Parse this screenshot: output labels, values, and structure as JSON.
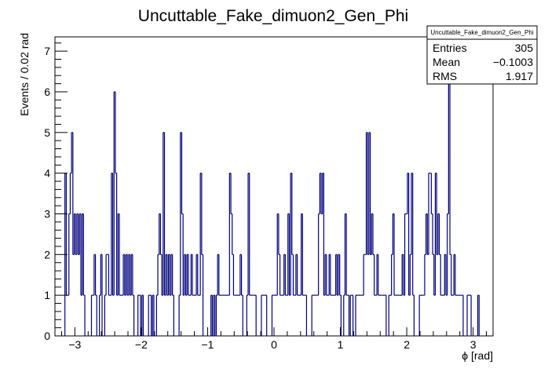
{
  "chart_data": {
    "type": "bar",
    "title": "Uncuttable_Fake_dimuon2_Gen_Phi",
    "xlabel": "ϕ [rad]",
    "ylabel": "Events / 0.02 rad",
    "xlim": [
      -3.3,
      3.3
    ],
    "ylim": [
      0,
      7.35
    ],
    "bin_width": 0.02,
    "x_ticks": [
      -3,
      -2,
      -1,
      0,
      1,
      2,
      3
    ],
    "x_tick_labels": [
      "−3",
      "−2",
      "−1",
      "0",
      "1",
      "2",
      "3"
    ],
    "y_ticks": [
      0,
      1,
      2,
      3,
      4,
      5,
      6,
      7
    ],
    "y_tick_labels": [
      "0",
      "1",
      "2",
      "3",
      "4",
      "5",
      "6",
      "7"
    ],
    "line_color": "#00007f",
    "grid": false,
    "legend_position": "top-right",
    "stats": {
      "header": "Uncuttable_Fake_dimuon2_Gen_Phi",
      "rows": [
        {
          "label": "Entries",
          "value": "305"
        },
        {
          "label": "Mean",
          "value": "−0.1003"
        },
        {
          "label": "RMS",
          "value": "1.917"
        }
      ]
    },
    "bins": [
      {
        "x": -3.14,
        "y": 4
      },
      {
        "x": -3.12,
        "y": 1
      },
      {
        "x": -3.1,
        "y": 1
      },
      {
        "x": -3.08,
        "y": 3
      },
      {
        "x": -3.06,
        "y": 4
      },
      {
        "x": -3.04,
        "y": 5
      },
      {
        "x": -3.02,
        "y": 2
      },
      {
        "x": -3.0,
        "y": 3
      },
      {
        "x": -2.98,
        "y": 2
      },
      {
        "x": -2.96,
        "y": 3
      },
      {
        "x": -2.94,
        "y": 2
      },
      {
        "x": -2.92,
        "y": 3
      },
      {
        "x": -2.9,
        "y": 1
      },
      {
        "x": -2.88,
        "y": 3
      },
      {
        "x": -2.86,
        "y": 1
      },
      {
        "x": -2.74,
        "y": 1
      },
      {
        "x": -2.72,
        "y": 1
      },
      {
        "x": -2.7,
        "y": 2
      },
      {
        "x": -2.68,
        "y": 1
      },
      {
        "x": -2.62,
        "y": 1
      },
      {
        "x": -2.6,
        "y": 2
      },
      {
        "x": -2.54,
        "y": 1
      },
      {
        "x": -2.52,
        "y": 2
      },
      {
        "x": -2.5,
        "y": 2
      },
      {
        "x": -2.48,
        "y": 1
      },
      {
        "x": -2.46,
        "y": 1
      },
      {
        "x": -2.44,
        "y": 4
      },
      {
        "x": -2.42,
        "y": 1
      },
      {
        "x": -2.4,
        "y": 6
      },
      {
        "x": -2.38,
        "y": 4
      },
      {
        "x": -2.36,
        "y": 1
      },
      {
        "x": -2.34,
        "y": 3
      },
      {
        "x": -2.32,
        "y": 1
      },
      {
        "x": -2.3,
        "y": 1
      },
      {
        "x": -2.28,
        "y": 1
      },
      {
        "x": -2.26,
        "y": 2
      },
      {
        "x": -2.24,
        "y": 1
      },
      {
        "x": -2.22,
        "y": 2
      },
      {
        "x": -2.2,
        "y": 1
      },
      {
        "x": -2.18,
        "y": 2
      },
      {
        "x": -2.16,
        "y": 1
      },
      {
        "x": -2.14,
        "y": 2
      },
      {
        "x": -2.12,
        "y": 1
      },
      {
        "x": -2.04,
        "y": 1
      },
      {
        "x": -2.02,
        "y": 1
      },
      {
        "x": -1.98,
        "y": 1
      },
      {
        "x": -1.88,
        "y": 1
      },
      {
        "x": -1.86,
        "y": 1
      },
      {
        "x": -1.82,
        "y": 1
      },
      {
        "x": -1.76,
        "y": 1
      },
      {
        "x": -1.74,
        "y": 2
      },
      {
        "x": -1.72,
        "y": 3
      },
      {
        "x": -1.7,
        "y": 2
      },
      {
        "x": -1.68,
        "y": 1
      },
      {
        "x": -1.66,
        "y": 5
      },
      {
        "x": -1.64,
        "y": 1
      },
      {
        "x": -1.62,
        "y": 2
      },
      {
        "x": -1.6,
        "y": 1
      },
      {
        "x": -1.58,
        "y": 2
      },
      {
        "x": -1.56,
        "y": 1
      },
      {
        "x": -1.54,
        "y": 2
      },
      {
        "x": -1.52,
        "y": 1
      },
      {
        "x": -1.42,
        "y": 1
      },
      {
        "x": -1.4,
        "y": 5
      },
      {
        "x": -1.38,
        "y": 3
      },
      {
        "x": -1.36,
        "y": 1
      },
      {
        "x": -1.34,
        "y": 2
      },
      {
        "x": -1.32,
        "y": 1
      },
      {
        "x": -1.3,
        "y": 2
      },
      {
        "x": -1.28,
        "y": 1
      },
      {
        "x": -1.26,
        "y": 1
      },
      {
        "x": -1.24,
        "y": 2
      },
      {
        "x": -1.22,
        "y": 1
      },
      {
        "x": -1.2,
        "y": 1
      },
      {
        "x": -1.18,
        "y": 1
      },
      {
        "x": -1.16,
        "y": 2
      },
      {
        "x": -1.14,
        "y": 1
      },
      {
        "x": -1.12,
        "y": 1
      },
      {
        "x": -1.1,
        "y": 4
      },
      {
        "x": -1.08,
        "y": 2
      },
      {
        "x": -0.94,
        "y": 1
      },
      {
        "x": -0.9,
        "y": 1
      },
      {
        "x": -0.86,
        "y": 1
      },
      {
        "x": -0.84,
        "y": 2
      },
      {
        "x": -0.82,
        "y": 1
      },
      {
        "x": -0.8,
        "y": 1
      },
      {
        "x": -0.78,
        "y": 1
      },
      {
        "x": -0.76,
        "y": 1
      },
      {
        "x": -0.74,
        "y": 1
      },
      {
        "x": -0.72,
        "y": 1
      },
      {
        "x": -0.7,
        "y": 1
      },
      {
        "x": -0.68,
        "y": 1
      },
      {
        "x": -0.66,
        "y": 4
      },
      {
        "x": -0.64,
        "y": 3
      },
      {
        "x": -0.62,
        "y": 2
      },
      {
        "x": -0.6,
        "y": 1
      },
      {
        "x": -0.58,
        "y": 1
      },
      {
        "x": -0.56,
        "y": 1
      },
      {
        "x": -0.54,
        "y": 1
      },
      {
        "x": -0.52,
        "y": 1
      },
      {
        "x": -0.5,
        "y": 2
      },
      {
        "x": -0.48,
        "y": 1
      },
      {
        "x": -0.4,
        "y": 1
      },
      {
        "x": -0.38,
        "y": 4
      },
      {
        "x": -0.36,
        "y": 1
      },
      {
        "x": -0.34,
        "y": 1
      },
      {
        "x": -0.32,
        "y": 1
      },
      {
        "x": -0.3,
        "y": 1
      },
      {
        "x": -0.28,
        "y": 1
      },
      {
        "x": -0.18,
        "y": 1
      },
      {
        "x": -0.16,
        "y": 1
      },
      {
        "x": -0.14,
        "y": 1
      },
      {
        "x": -0.12,
        "y": 1
      },
      {
        "x": -0.02,
        "y": 1
      },
      {
        "x": 0.0,
        "y": 1
      },
      {
        "x": 0.02,
        "y": 1
      },
      {
        "x": 0.04,
        "y": 1
      },
      {
        "x": 0.06,
        "y": 3
      },
      {
        "x": 0.08,
        "y": 2
      },
      {
        "x": 0.1,
        "y": 1
      },
      {
        "x": 0.12,
        "y": 1
      },
      {
        "x": 0.14,
        "y": 1
      },
      {
        "x": 0.16,
        "y": 2
      },
      {
        "x": 0.18,
        "y": 1
      },
      {
        "x": 0.2,
        "y": 1
      },
      {
        "x": 0.22,
        "y": 3
      },
      {
        "x": 0.24,
        "y": 1
      },
      {
        "x": 0.26,
        "y": 4
      },
      {
        "x": 0.28,
        "y": 2
      },
      {
        "x": 0.3,
        "y": 1
      },
      {
        "x": 0.32,
        "y": 1
      },
      {
        "x": 0.34,
        "y": 2
      },
      {
        "x": 0.36,
        "y": 1
      },
      {
        "x": 0.38,
        "y": 1
      },
      {
        "x": 0.4,
        "y": 1
      },
      {
        "x": 0.42,
        "y": 3
      },
      {
        "x": 0.44,
        "y": 1
      },
      {
        "x": 0.46,
        "y": 1
      },
      {
        "x": 0.48,
        "y": 1
      },
      {
        "x": 0.58,
        "y": 1
      },
      {
        "x": 0.6,
        "y": 1
      },
      {
        "x": 0.62,
        "y": 1
      },
      {
        "x": 0.64,
        "y": 1
      },
      {
        "x": 0.66,
        "y": 1
      },
      {
        "x": 0.68,
        "y": 3
      },
      {
        "x": 0.7,
        "y": 4
      },
      {
        "x": 0.72,
        "y": 3
      },
      {
        "x": 0.74,
        "y": 4
      },
      {
        "x": 0.76,
        "y": 1
      },
      {
        "x": 0.78,
        "y": 2
      },
      {
        "x": 0.8,
        "y": 1
      },
      {
        "x": 0.82,
        "y": 1
      },
      {
        "x": 0.84,
        "y": 2
      },
      {
        "x": 0.86,
        "y": 1
      },
      {
        "x": 0.88,
        "y": 1
      },
      {
        "x": 0.9,
        "y": 1
      },
      {
        "x": 0.92,
        "y": 1
      },
      {
        "x": 0.94,
        "y": 2
      },
      {
        "x": 0.96,
        "y": 1
      },
      {
        "x": 0.98,
        "y": 2
      },
      {
        "x": 1.0,
        "y": 1
      },
      {
        "x": 1.06,
        "y": 1
      },
      {
        "x": 1.08,
        "y": 3
      },
      {
        "x": 1.1,
        "y": 1
      },
      {
        "x": 1.12,
        "y": 1
      },
      {
        "x": 1.16,
        "y": 1
      },
      {
        "x": 1.18,
        "y": 1
      },
      {
        "x": 1.24,
        "y": 1
      },
      {
        "x": 1.26,
        "y": 1
      },
      {
        "x": 1.28,
        "y": 1
      },
      {
        "x": 1.3,
        "y": 1
      },
      {
        "x": 1.32,
        "y": 1
      },
      {
        "x": 1.34,
        "y": 1
      },
      {
        "x": 1.36,
        "y": 2
      },
      {
        "x": 1.38,
        "y": 2
      },
      {
        "x": 1.4,
        "y": 5
      },
      {
        "x": 1.42,
        "y": 2
      },
      {
        "x": 1.44,
        "y": 5
      },
      {
        "x": 1.46,
        "y": 2
      },
      {
        "x": 1.48,
        "y": 3
      },
      {
        "x": 1.5,
        "y": 2
      },
      {
        "x": 1.52,
        "y": 1
      },
      {
        "x": 1.54,
        "y": 1
      },
      {
        "x": 1.56,
        "y": 2
      },
      {
        "x": 1.58,
        "y": 1
      },
      {
        "x": 1.6,
        "y": 1
      },
      {
        "x": 1.62,
        "y": 1
      },
      {
        "x": 1.64,
        "y": 1
      },
      {
        "x": 1.66,
        "y": 1
      },
      {
        "x": 1.68,
        "y": 1
      },
      {
        "x": 1.74,
        "y": 1
      },
      {
        "x": 1.76,
        "y": 1
      },
      {
        "x": 1.78,
        "y": 2
      },
      {
        "x": 1.8,
        "y": 3
      },
      {
        "x": 1.82,
        "y": 1
      },
      {
        "x": 1.84,
        "y": 1
      },
      {
        "x": 1.86,
        "y": 1
      },
      {
        "x": 1.88,
        "y": 1
      },
      {
        "x": 1.9,
        "y": 1
      },
      {
        "x": 1.92,
        "y": 1
      },
      {
        "x": 1.94,
        "y": 2
      },
      {
        "x": 1.96,
        "y": 1
      },
      {
        "x": 1.98,
        "y": 3
      },
      {
        "x": 2.0,
        "y": 3
      },
      {
        "x": 2.02,
        "y": 4
      },
      {
        "x": 2.04,
        "y": 1
      },
      {
        "x": 2.06,
        "y": 2
      },
      {
        "x": 2.08,
        "y": 4
      },
      {
        "x": 2.1,
        "y": 1
      },
      {
        "x": 2.2,
        "y": 1
      },
      {
        "x": 2.22,
        "y": 1
      },
      {
        "x": 2.24,
        "y": 1
      },
      {
        "x": 2.26,
        "y": 1
      },
      {
        "x": 2.28,
        "y": 2
      },
      {
        "x": 2.3,
        "y": 3
      },
      {
        "x": 2.32,
        "y": 2
      },
      {
        "x": 2.34,
        "y": 4
      },
      {
        "x": 2.36,
        "y": 4
      },
      {
        "x": 2.38,
        "y": 3
      },
      {
        "x": 2.4,
        "y": 2
      },
      {
        "x": 2.42,
        "y": 1
      },
      {
        "x": 2.44,
        "y": 4
      },
      {
        "x": 2.46,
        "y": 2
      },
      {
        "x": 2.48,
        "y": 3
      },
      {
        "x": 2.5,
        "y": 2
      },
      {
        "x": 2.52,
        "y": 1
      },
      {
        "x": 2.54,
        "y": 1
      },
      {
        "x": 2.56,
        "y": 1
      },
      {
        "x": 2.58,
        "y": 2
      },
      {
        "x": 2.6,
        "y": 1
      },
      {
        "x": 2.62,
        "y": 3
      },
      {
        "x": 2.64,
        "y": 7
      },
      {
        "x": 2.66,
        "y": 2
      },
      {
        "x": 2.68,
        "y": 1
      },
      {
        "x": 2.7,
        "y": 1
      },
      {
        "x": 2.72,
        "y": 2
      },
      {
        "x": 2.74,
        "y": 1
      },
      {
        "x": 2.76,
        "y": 1
      },
      {
        "x": 2.78,
        "y": 1
      },
      {
        "x": 2.8,
        "y": 1
      },
      {
        "x": 2.82,
        "y": 1
      },
      {
        "x": 2.84,
        "y": 1
      },
      {
        "x": 2.92,
        "y": 1
      },
      {
        "x": 2.94,
        "y": 1
      },
      {
        "x": 2.96,
        "y": 1
      },
      {
        "x": 3.08,
        "y": 1
      }
    ]
  }
}
